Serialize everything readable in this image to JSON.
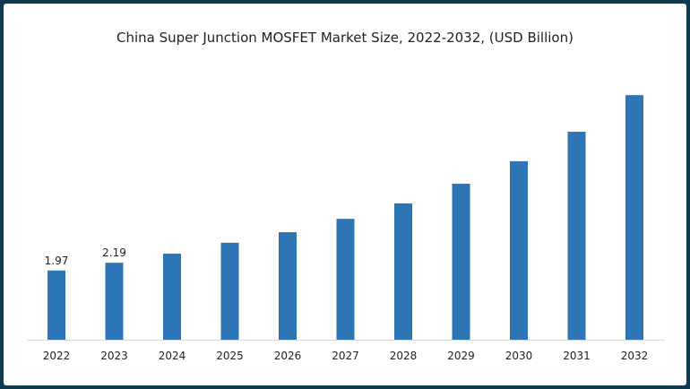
{
  "chart_data": {
    "type": "bar",
    "title": "China Super Junction MOSFET Market Size, 2022-2032, (USD Billion)",
    "xlabel": "",
    "ylabel": "",
    "categories": [
      "2022",
      "2023",
      "2024",
      "2025",
      "2026",
      "2027",
      "2028",
      "2029",
      "2030",
      "2031",
      "2032"
    ],
    "values": [
      1.97,
      2.19,
      2.45,
      2.76,
      3.06,
      3.44,
      3.88,
      4.44,
      5.08,
      5.92,
      6.96
    ],
    "data_labels": {
      "0": "1.97",
      "1": "2.19"
    },
    "ylim": [
      0,
      7.4
    ],
    "grid": false,
    "bar_color": "#2e75b6",
    "frame_color": "#0f3b52"
  }
}
